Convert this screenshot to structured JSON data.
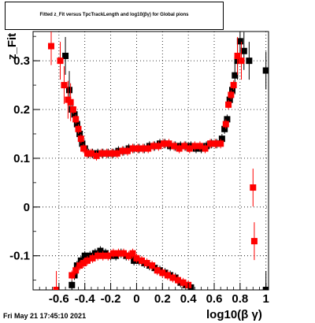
{
  "title": "Fitted z_Fit versus TpcTrackLength and log10(βγ) for Global pions",
  "datestamp": "Fri May 21 17:45:10 2021",
  "chart_data": {
    "type": "scatter",
    "xlabel": "log10(β γ)",
    "ylabel": "z_Fit",
    "xlim": [
      -0.8,
      1.02
    ],
    "ylim": [
      -0.17,
      0.36
    ],
    "grid": true,
    "x_ticks": [
      -0.6,
      -0.4,
      -0.2,
      0,
      0.2,
      0.4,
      0.6,
      0.8,
      1
    ],
    "x_tick_labels": [
      "-0.6",
      "-0.4",
      "-0.2",
      "0",
      "0.2",
      "0.4",
      "0.6",
      "0.8",
      "1"
    ],
    "y_ticks": [
      -0.1,
      0,
      0.1,
      0.2,
      0.3
    ],
    "y_tick_labels": [
      "-0.1",
      "0",
      "0.1",
      "0.2",
      "0.3"
    ],
    "series": [
      {
        "color": "#000000",
        "upper": [
          [
            -0.55,
            0.31
          ],
          [
            -0.52,
            0.24
          ],
          [
            -0.5,
            0.2
          ],
          [
            -0.48,
            0.19
          ],
          [
            -0.46,
            0.17
          ],
          [
            -0.44,
            0.15
          ],
          [
            -0.42,
            0.13
          ],
          [
            -0.4,
            0.12
          ],
          [
            -0.37,
            0.11
          ],
          [
            -0.34,
            0.11
          ],
          [
            -0.3,
            0.11
          ],
          [
            -0.26,
            0.11
          ],
          [
            -0.22,
            0.11
          ],
          [
            -0.18,
            0.11
          ],
          [
            -0.14,
            0.115
          ],
          [
            -0.1,
            0.115
          ],
          [
            -0.06,
            0.12
          ],
          [
            -0.02,
            0.12
          ],
          [
            0.02,
            0.12
          ],
          [
            0.06,
            0.12
          ],
          [
            0.1,
            0.125
          ],
          [
            0.14,
            0.125
          ],
          [
            0.18,
            0.13
          ],
          [
            0.22,
            0.13
          ],
          [
            0.26,
            0.125
          ],
          [
            0.3,
            0.125
          ],
          [
            0.34,
            0.125
          ],
          [
            0.38,
            0.125
          ],
          [
            0.42,
            0.125
          ],
          [
            0.46,
            0.12
          ],
          [
            0.5,
            0.12
          ],
          [
            0.54,
            0.125
          ],
          [
            0.58,
            0.13
          ],
          [
            0.62,
            0.13
          ],
          [
            0.66,
            0.14
          ],
          [
            0.68,
            0.16
          ],
          [
            0.7,
            0.18
          ],
          [
            0.72,
            0.22
          ],
          [
            0.74,
            0.24
          ],
          [
            0.76,
            0.27
          ],
          [
            0.78,
            0.3
          ],
          [
            0.8,
            0.34
          ],
          [
            0.83,
            0.32
          ],
          [
            0.87,
            0.3
          ],
          [
            1.0,
            0.28
          ]
        ],
        "lower": [
          [
            -0.5,
            -0.16
          ],
          [
            -0.48,
            -0.14
          ],
          [
            -0.46,
            -0.12
          ],
          [
            -0.43,
            -0.11
          ],
          [
            -0.4,
            -0.1
          ],
          [
            -0.36,
            -0.1
          ],
          [
            -0.32,
            -0.095
          ],
          [
            -0.28,
            -0.09
          ],
          [
            -0.24,
            -0.095
          ],
          [
            -0.2,
            -0.1
          ],
          [
            -0.16,
            -0.1
          ],
          [
            -0.12,
            -0.095
          ],
          [
            -0.08,
            -0.1
          ],
          [
            -0.04,
            -0.1
          ],
          [
            -0.02,
            -0.11
          ],
          [
            0.02,
            -0.11
          ],
          [
            0.06,
            -0.115
          ],
          [
            0.1,
            -0.12
          ],
          [
            0.14,
            -0.125
          ],
          [
            0.18,
            -0.13
          ],
          [
            0.22,
            -0.135
          ],
          [
            0.26,
            -0.14
          ],
          [
            0.3,
            -0.145
          ],
          [
            0.34,
            -0.155
          ],
          [
            0.38,
            -0.16
          ],
          [
            0.42,
            -0.165
          ],
          [
            1.0,
            -0.17
          ]
        ]
      },
      {
        "color": "#ff0000",
        "upper": [
          [
            -0.66,
            0.33
          ],
          [
            -0.59,
            0.3
          ],
          [
            -0.56,
            0.25
          ],
          [
            -0.53,
            0.22
          ],
          [
            -0.51,
            0.215
          ],
          [
            -0.49,
            0.2
          ],
          [
            -0.47,
            0.18
          ],
          [
            -0.45,
            0.16
          ],
          [
            -0.43,
            0.14
          ],
          [
            -0.41,
            0.12
          ],
          [
            -0.38,
            0.11
          ],
          [
            -0.35,
            0.11
          ],
          [
            -0.31,
            0.105
          ],
          [
            -0.27,
            0.11
          ],
          [
            -0.23,
            0.11
          ],
          [
            -0.19,
            0.11
          ],
          [
            -0.15,
            0.11
          ],
          [
            -0.11,
            0.115
          ],
          [
            -0.07,
            0.115
          ],
          [
            -0.03,
            0.12
          ],
          [
            0.01,
            0.12
          ],
          [
            0.05,
            0.12
          ],
          [
            0.09,
            0.12
          ],
          [
            0.13,
            0.125
          ],
          [
            0.17,
            0.125
          ],
          [
            0.21,
            0.13
          ],
          [
            0.25,
            0.13
          ],
          [
            0.29,
            0.125
          ],
          [
            0.33,
            0.12
          ],
          [
            0.37,
            0.125
          ],
          [
            0.41,
            0.12
          ],
          [
            0.45,
            0.125
          ],
          [
            0.49,
            0.125
          ],
          [
            0.53,
            0.12
          ],
          [
            0.57,
            0.13
          ],
          [
            0.61,
            0.13
          ],
          [
            0.65,
            0.13
          ],
          [
            0.69,
            0.17
          ],
          [
            0.71,
            0.21
          ],
          [
            0.73,
            0.23
          ],
          [
            0.75,
            0.25
          ],
          [
            0.78,
            0.31
          ],
          [
            0.81,
            0.3
          ],
          [
            0.9,
            0.04
          ]
        ],
        "lower": [
          [
            -0.62,
            -0.17
          ],
          [
            -0.5,
            -0.14
          ],
          [
            -0.47,
            -0.13
          ],
          [
            -0.44,
            -0.12
          ],
          [
            -0.41,
            -0.115
          ],
          [
            -0.38,
            -0.11
          ],
          [
            -0.34,
            -0.105
          ],
          [
            -0.3,
            -0.1
          ],
          [
            -0.26,
            -0.1
          ],
          [
            -0.22,
            -0.1
          ],
          [
            -0.18,
            -0.095
          ],
          [
            -0.14,
            -0.095
          ],
          [
            -0.1,
            -0.095
          ],
          [
            -0.06,
            -0.1
          ],
          [
            -0.03,
            -0.095
          ],
          [
            0.0,
            -0.105
          ],
          [
            0.04,
            -0.11
          ],
          [
            0.08,
            -0.115
          ],
          [
            0.12,
            -0.12
          ],
          [
            0.16,
            -0.13
          ],
          [
            0.2,
            -0.135
          ],
          [
            0.24,
            -0.14
          ],
          [
            0.28,
            -0.145
          ],
          [
            0.32,
            -0.15
          ],
          [
            0.36,
            -0.155
          ],
          [
            0.4,
            -0.16
          ],
          [
            0.91,
            -0.07
          ]
        ]
      }
    ]
  }
}
